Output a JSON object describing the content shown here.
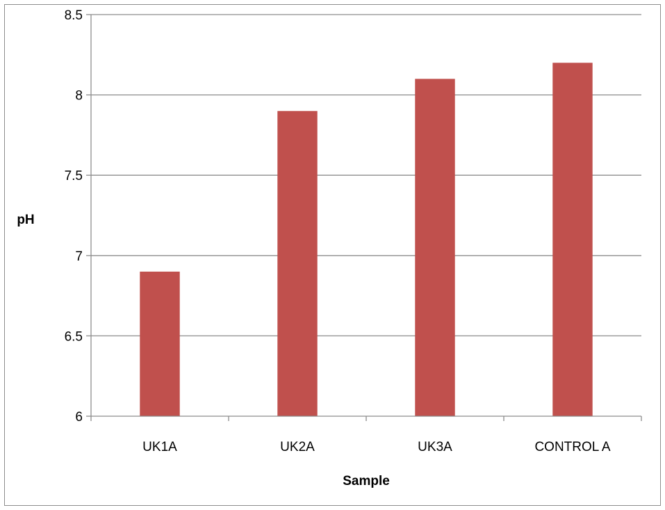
{
  "chart_data": {
    "type": "bar",
    "categories": [
      "UK1A",
      "UK2A",
      "UK3A",
      "CONTROL A"
    ],
    "series": [
      {
        "values": [
          6.9,
          7.9,
          8.1,
          8.2
        ],
        "color": "#c0504d"
      }
    ],
    "xlabel": "Sample",
    "ylabel": "pH",
    "ylim": [
      6,
      8.5
    ],
    "yticks": [
      "6",
      "6.5",
      "7",
      "7.5",
      "8",
      "8.5"
    ],
    "ytick_values": [
      6,
      6.5,
      7,
      7.5,
      8,
      8.5
    ],
    "grid": true,
    "legend": "none"
  }
}
